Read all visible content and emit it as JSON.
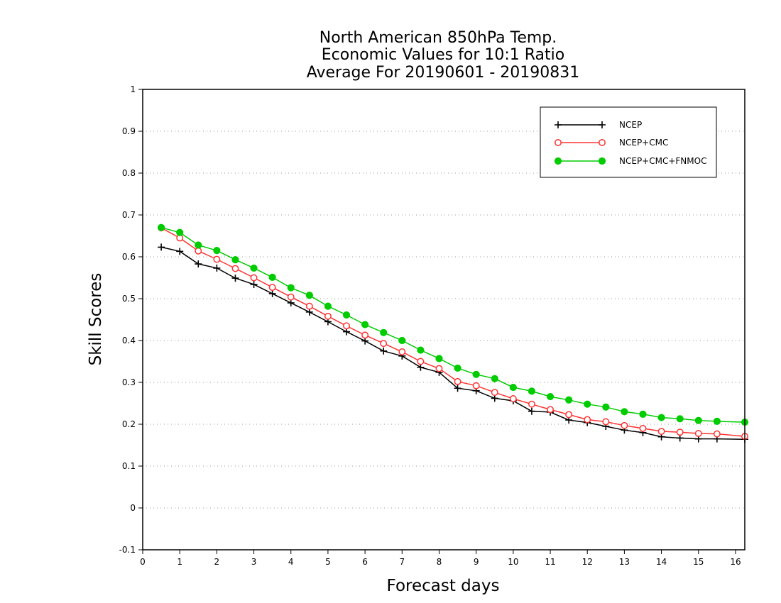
{
  "chart_data": {
    "type": "line",
    "title_lines": [
      "North American 850hPa Temp.",
      "Economic Values for 10:1 Ratio",
      "Average For 20190601 - 20190831"
    ],
    "xlabel": "Forecast days",
    "ylabel": "Skill Scores",
    "xlim": [
      0,
      16.25
    ],
    "ylim": [
      -0.1,
      1
    ],
    "xticks": [
      0,
      1,
      2,
      3,
      4,
      5,
      6,
      7,
      8,
      9,
      10,
      11,
      12,
      13,
      14,
      15,
      16
    ],
    "xtick_labels": [
      "0",
      "1",
      "2",
      "3",
      "4",
      "5",
      "6",
      "7",
      "8",
      "9",
      "10",
      "11",
      "12",
      "13",
      "14",
      "15",
      "16"
    ],
    "yticks": [
      -0.1,
      0,
      0.1,
      0.2,
      0.3,
      0.4,
      0.5,
      0.6,
      0.7,
      0.8,
      0.9,
      1
    ],
    "ytick_labels": [
      "-0.1",
      "0",
      "0.1",
      "0.2",
      "0.3",
      "0.4",
      "0.5",
      "0.6",
      "0.7",
      "0.8",
      "0.9",
      "1"
    ],
    "grid": "horizontal dotted",
    "legend_position": "top-right",
    "x": [
      0.5,
      1,
      1.5,
      2,
      2.5,
      3,
      3.5,
      4,
      4.5,
      5,
      5.5,
      6,
      6.5,
      7,
      7.5,
      8,
      8.5,
      9,
      9.5,
      10,
      10.5,
      11,
      11.5,
      12,
      12.5,
      13,
      13.5,
      14,
      14.5,
      15,
      15.5,
      16.25
    ],
    "series": [
      {
        "name": "NCEP",
        "color": "#000000",
        "marker": "plus",
        "values": [
          0.623,
          0.613,
          0.583,
          0.573,
          0.549,
          0.534,
          0.512,
          0.49,
          0.468,
          0.445,
          0.421,
          0.399,
          0.375,
          0.363,
          0.336,
          0.324,
          0.286,
          0.28,
          0.262,
          0.256,
          0.231,
          0.229,
          0.21,
          0.204,
          0.195,
          0.186,
          0.18,
          0.17,
          0.167,
          0.165,
          0.165,
          0.164
        ]
      },
      {
        "name": "NCEP+CMC",
        "color": "#ff3333",
        "marker": "open-circle",
        "values": [
          0.669,
          0.645,
          0.614,
          0.594,
          0.572,
          0.55,
          0.527,
          0.504,
          0.482,
          0.458,
          0.435,
          0.413,
          0.393,
          0.373,
          0.35,
          0.333,
          0.302,
          0.292,
          0.276,
          0.261,
          0.248,
          0.235,
          0.223,
          0.211,
          0.206,
          0.197,
          0.19,
          0.183,
          0.181,
          0.178,
          0.177,
          0.171
        ]
      },
      {
        "name": "NCEP+CMC+FNMOC",
        "color": "#00cc00",
        "marker": "filled-circle",
        "values": [
          0.67,
          0.658,
          0.628,
          0.615,
          0.593,
          0.573,
          0.551,
          0.526,
          0.508,
          0.482,
          0.461,
          0.438,
          0.419,
          0.4,
          0.377,
          0.357,
          0.334,
          0.319,
          0.309,
          0.288,
          0.279,
          0.266,
          0.258,
          0.248,
          0.241,
          0.23,
          0.224,
          0.216,
          0.213,
          0.209,
          0.207,
          0.205
        ]
      }
    ]
  }
}
